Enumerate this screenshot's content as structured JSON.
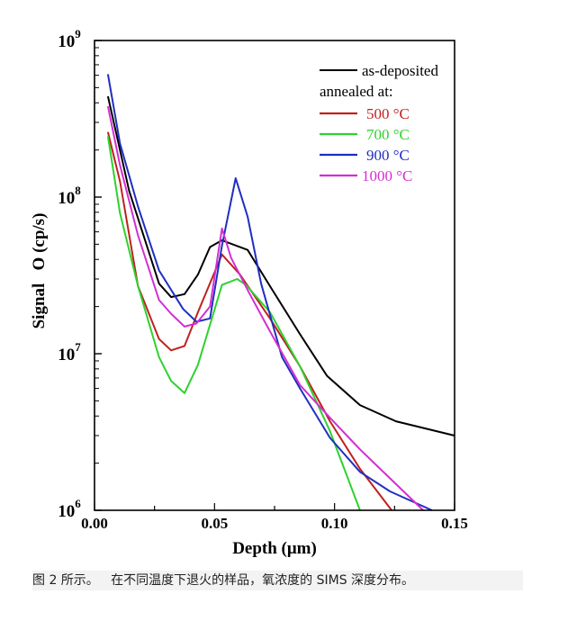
{
  "chart_data": {
    "type": "line",
    "title": "",
    "xlabel": "Depth (μm)",
    "ylabel": "Signal   O (cp/s)",
    "xlim": [
      0,
      0.15
    ],
    "ylim": [
      1000000,
      1000000000
    ],
    "yscale": "log",
    "xticks": [
      "0.00",
      "0.05",
      "0.10",
      "0.15"
    ],
    "xtick_values": [
      0,
      0.05,
      0.1,
      0.15
    ],
    "yticks": [
      {
        "base": "10",
        "exp": "6"
      },
      {
        "base": "10",
        "exp": "7"
      },
      {
        "base": "10",
        "exp": "8"
      },
      {
        "base": "10",
        "exp": "9"
      }
    ],
    "grid": false,
    "legend_position": "top-right",
    "legend_header": "annealed at:",
    "series": [
      {
        "name": "as-deposited",
        "color": "#000000",
        "x": [
          0.0056,
          0.0144,
          0.0269,
          0.0319,
          0.0375,
          0.0431,
          0.0481,
          0.0531,
          0.0638,
          0.0731,
          0.0856,
          0.0969,
          0.1106,
          0.1256,
          0.15
        ],
        "y": [
          440000000.0,
          110000000.0,
          28000000.0,
          23000000.0,
          24000000.0,
          32000000.0,
          48000000.0,
          53000000.0,
          46000000.0,
          27000000.0,
          13300000.0,
          7200000.0,
          4700000.0,
          3700000.0,
          3000000.0
        ]
      },
      {
        "name": "500 °C",
        "color": "#c0211f",
        "x": [
          0.0056,
          0.0106,
          0.0181,
          0.0269,
          0.0319,
          0.0375,
          0.0431,
          0.0531,
          0.0606,
          0.0731,
          0.0856,
          0.0981,
          0.1106,
          0.1238
        ],
        "y": [
          260000000.0,
          126000000.0,
          27000000.0,
          12400000.0,
          10500000.0,
          11200000.0,
          18400000.0,
          43000000.0,
          32000000.0,
          16800000.0,
          8300000.0,
          3700000.0,
          1840000.0,
          1000000.0
        ]
      },
      {
        "name": "700 °C",
        "color": "#2fd12f",
        "x": [
          0.0056,
          0.0106,
          0.0181,
          0.0269,
          0.0319,
          0.0375,
          0.0431,
          0.0531,
          0.0594,
          0.0631,
          0.0731,
          0.0856,
          0.0981,
          0.1106
        ],
        "y": [
          245000000.0,
          79000000.0,
          27000000.0,
          9500000.0,
          6700000.0,
          5600000.0,
          8500000.0,
          27500000.0,
          30000000.0,
          27500000.0,
          18400000.0,
          8300000.0,
          3200000.0,
          1000000.0
        ]
      },
      {
        "name": "900 °C",
        "color": "#1f2fc0",
        "x": [
          0.0056,
          0.0106,
          0.0181,
          0.0269,
          0.0369,
          0.0425,
          0.0481,
          0.0531,
          0.0588,
          0.0638,
          0.0694,
          0.0781,
          0.0856,
          0.0981,
          0.1106,
          0.1231,
          0.1406
        ],
        "y": [
          610000000.0,
          220000000.0,
          87000000.0,
          34000000.0,
          19300000.0,
          16000000.0,
          16800000.0,
          49000000.0,
          132000000.0,
          75000000.0,
          28000000.0,
          9500000.0,
          6000000.0,
          2900000.0,
          1760000.0,
          1320000.0,
          1000000.0
        ]
      },
      {
        "name": "1000 °C",
        "color": "#d22fd2",
        "x": [
          0.0056,
          0.0106,
          0.0181,
          0.0269,
          0.0319,
          0.0375,
          0.0425,
          0.0481,
          0.0531,
          0.0569,
          0.0644,
          0.0731,
          0.0856,
          0.0981,
          0.1106,
          0.1231,
          0.1369
        ],
        "y": [
          380000000.0,
          160000000.0,
          57000000.0,
          22000000.0,
          18000000.0,
          14900000.0,
          15600000.0,
          20000000.0,
          63000000.0,
          41000000.0,
          24500000.0,
          13900000.0,
          6300000.0,
          3900000.0,
          2450000.0,
          1600000.0,
          1000000.0
        ]
      }
    ]
  },
  "caption": "图 2 所示。   在不同温度下退火的样品，氧浓度的 SIMS 深度分布。"
}
